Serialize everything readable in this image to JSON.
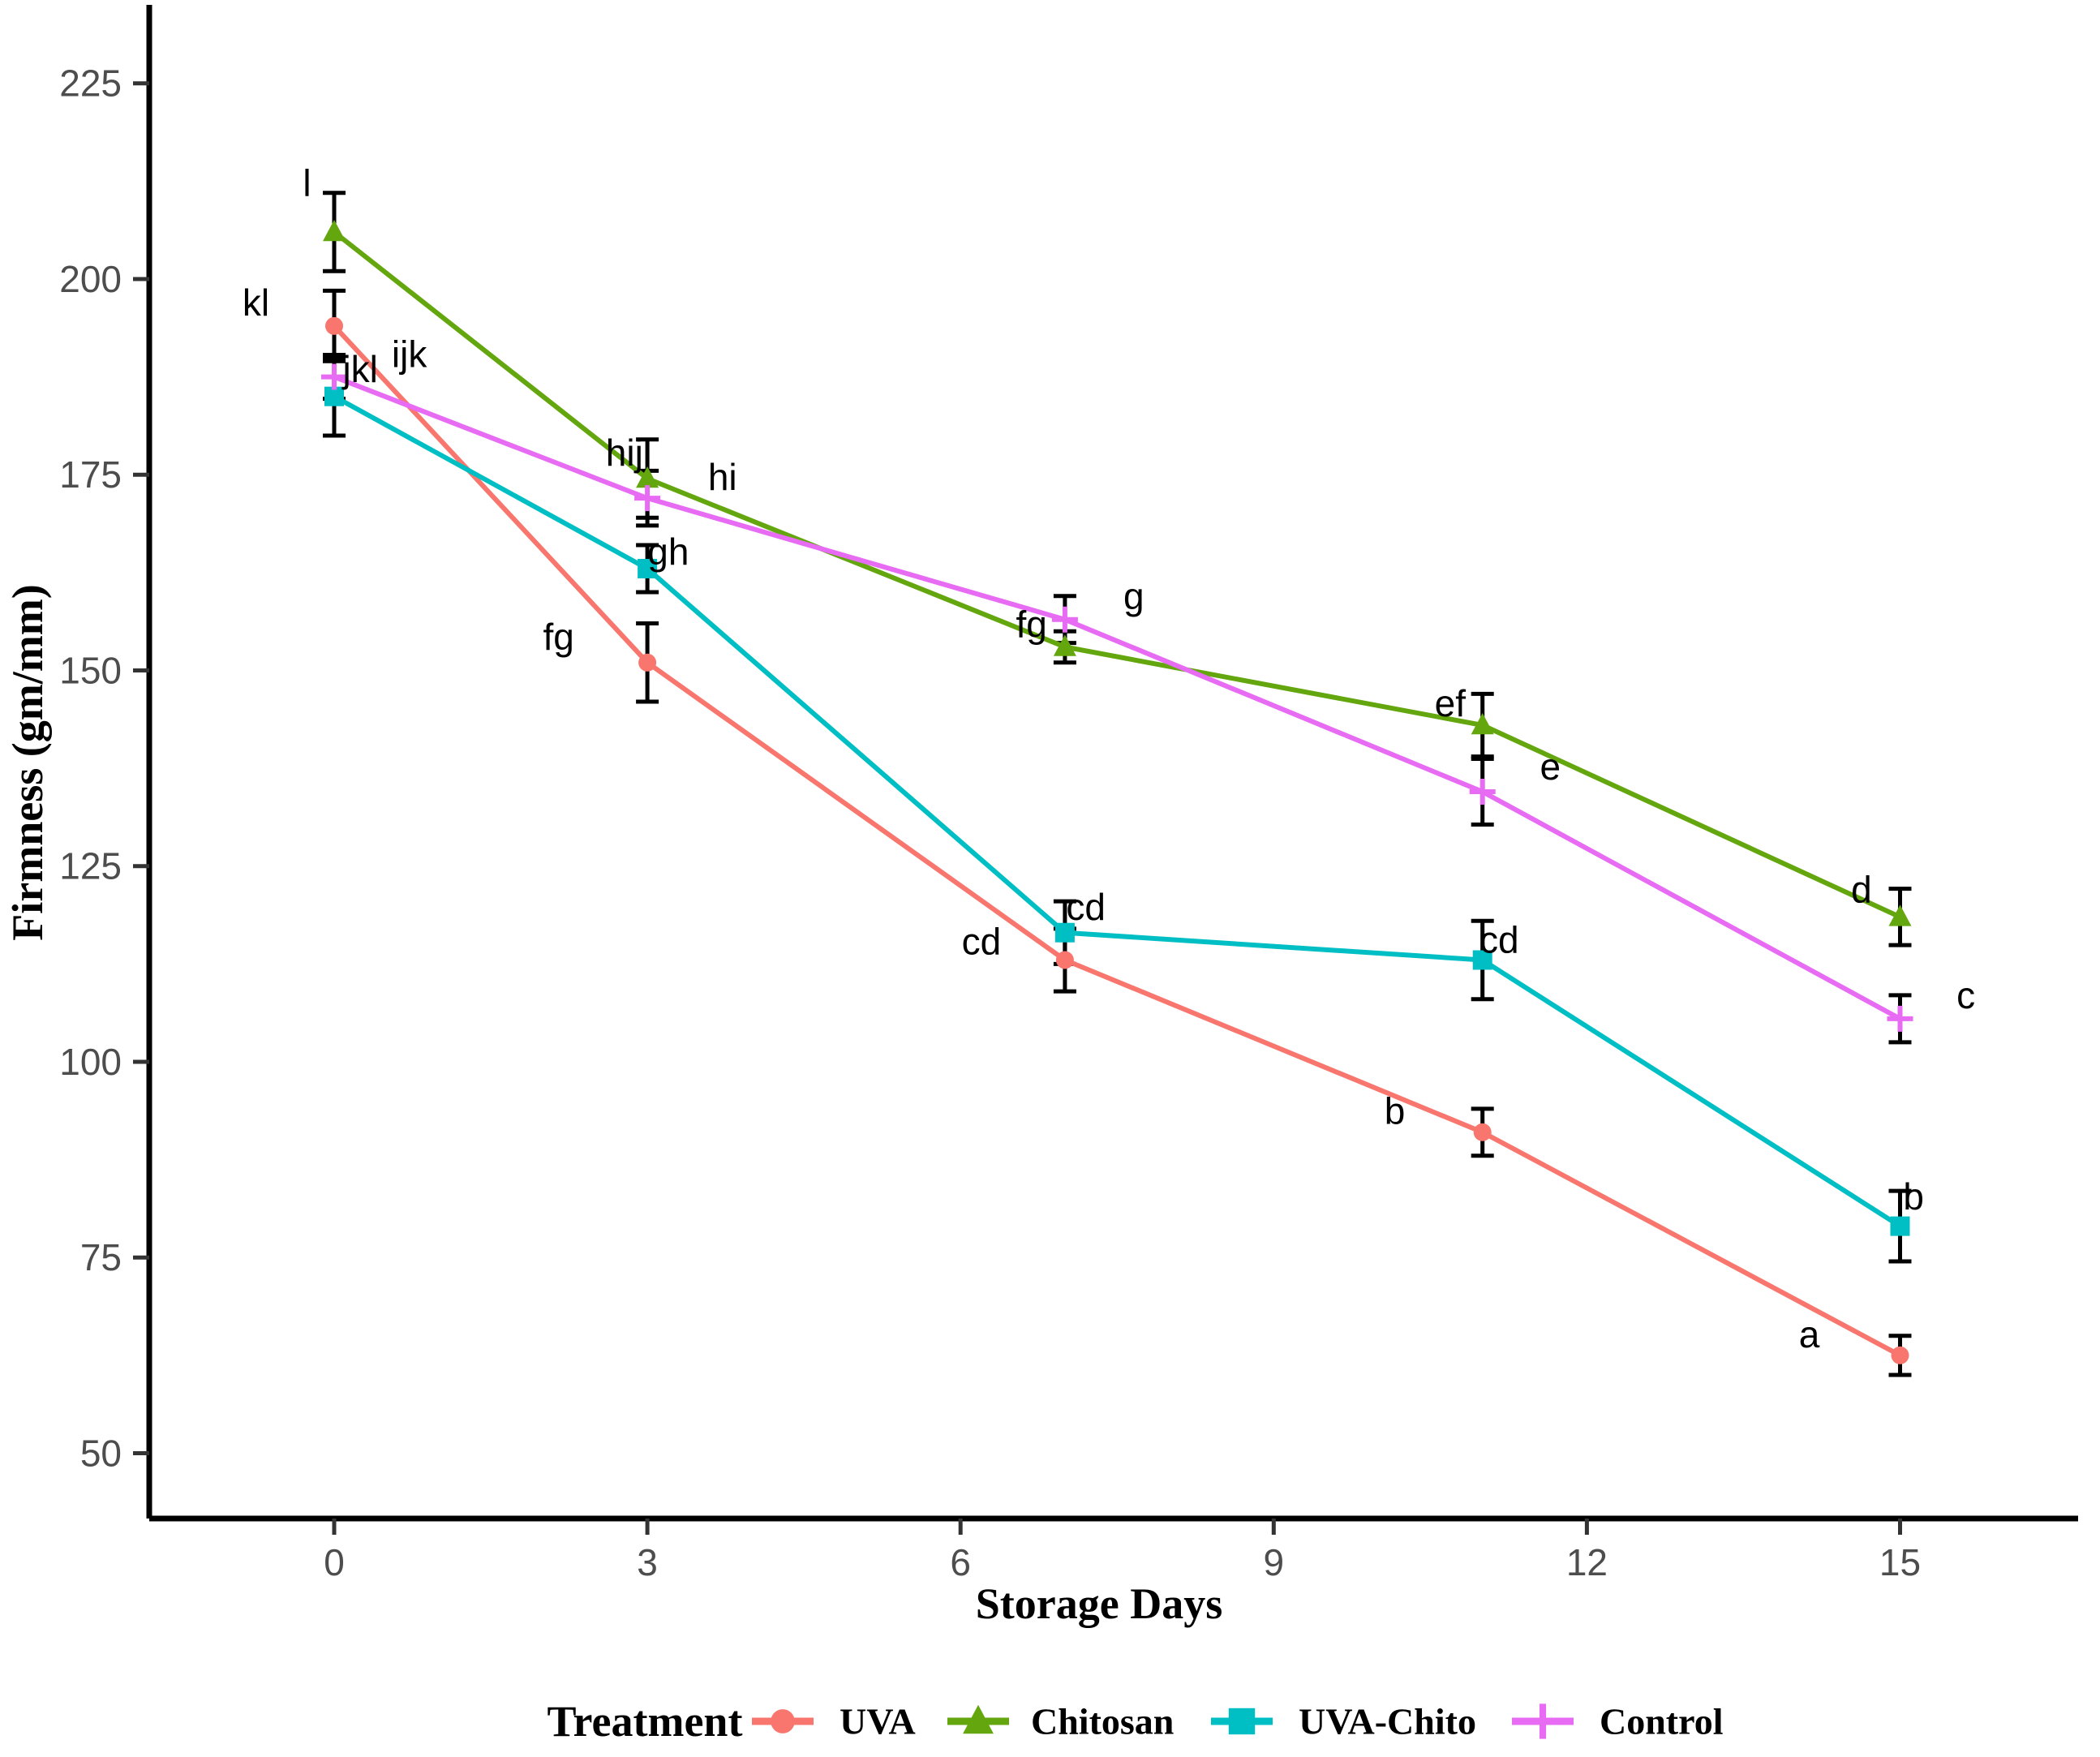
{
  "chart_data": {
    "type": "line",
    "title": "",
    "xlabel": "Storage Days",
    "ylabel": "Firmness (gm/mm)",
    "legend_title": "Treatment",
    "grid": false,
    "legend_position": "bottom",
    "x_ticks": [
      0,
      3,
      6,
      9,
      12,
      15
    ],
    "y_ticks": [
      50,
      75,
      100,
      125,
      150,
      175,
      200,
      225
    ],
    "xlim": [
      -1.8,
      16.8
    ],
    "ylim": [
      41,
      235
    ],
    "x": [
      0,
      3,
      7,
      11,
      15
    ],
    "series": [
      {
        "name": "UVA",
        "color": "#F8766D",
        "marker": "circle",
        "values": [
          194,
          151,
          113,
          91,
          62.5
        ],
        "errors": [
          4.5,
          5,
          4,
          3,
          2.5
        ],
        "letters": [
          "kl",
          "fg",
          "cd",
          "b",
          "a"
        ],
        "letter_pos": [
          [
            -0.75,
            197
          ],
          [
            2.15,
            154.3
          ],
          [
            6.2,
            115.4
          ],
          [
            10.16,
            93.7
          ],
          [
            14.13,
            65.2
          ]
        ]
      },
      {
        "name": "Chitosan",
        "color": "#63A60E",
        "marker": "triangle",
        "values": [
          206,
          174.5,
          153,
          143,
          118.5
        ],
        "errors": [
          5,
          5,
          2,
          4,
          3.6
        ],
        "letters": [
          "l",
          "hij",
          "fg",
          "ef",
          "d"
        ],
        "letter_pos": [
          [
            -0.26,
            212.3
          ],
          [
            2.78,
            177.8
          ],
          [
            6.68,
            155.9
          ],
          [
            10.69,
            145.8
          ],
          [
            14.63,
            122
          ]
        ]
      },
      {
        "name": "UVA-Chito",
        "color": "#00BFC4",
        "marker": "square",
        "values": [
          185,
          163,
          116.5,
          113,
          79
        ],
        "errors": [
          5,
          3,
          4,
          5,
          4.5
        ],
        "letters": [
          "ijk",
          "gh",
          "cd",
          "cd",
          "b"
        ],
        "letter_pos": [
          [
            0.72,
            190.4
          ],
          [
            3.2,
            165.2
          ],
          [
            7.2,
            119.8
          ],
          [
            11.16,
            115.6
          ],
          [
            15.13,
            82.8
          ]
        ]
      },
      {
        "name": "Control",
        "color": "#E76BF3",
        "marker": "plus",
        "values": [
          187.5,
          172,
          156.5,
          134.5,
          105.5
        ],
        "errors": [
          2.8,
          3.5,
          3,
          4.2,
          3
        ],
        "letters": [
          "jkl",
          "hi",
          "g",
          "e",
          "c"
        ],
        "letter_pos": [
          [
            0.25,
            188.5
          ],
          [
            3.72,
            174.7
          ],
          [
            7.66,
            159.5
          ],
          [
            11.65,
            137.7
          ],
          [
            15.63,
            108.5
          ]
        ]
      }
    ]
  }
}
